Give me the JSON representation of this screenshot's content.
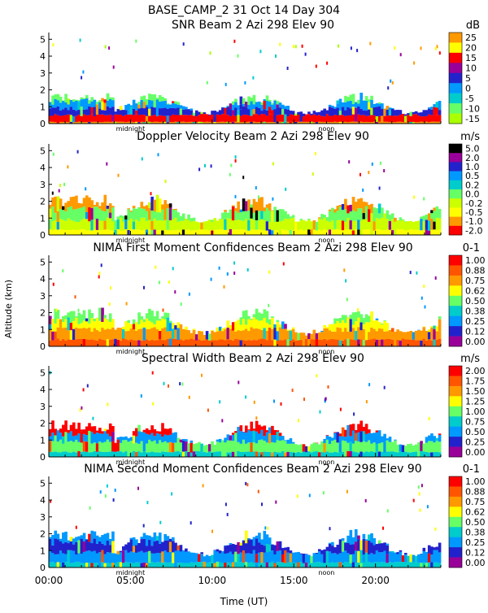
{
  "header": {
    "title": "BASE_CAMP_2  31 Oct 14 Day 304"
  },
  "x_axis": {
    "label": "Time (UT)",
    "range": [
      0,
      24
    ],
    "ticks": [
      {
        "v": 0,
        "label": "00:00"
      },
      {
        "v": 5,
        "label": "05:00"
      },
      {
        "v": 10,
        "label": "10:00"
      },
      {
        "v": 15,
        "label": "15:00"
      },
      {
        "v": 20,
        "label": "20:00"
      }
    ],
    "markers": [
      {
        "v": 5,
        "label": "midnight"
      },
      {
        "v": 17,
        "label": "noon"
      }
    ]
  },
  "y_axis": {
    "label": "Altitude (km)",
    "range": [
      0,
      5.4
    ],
    "ticks": [
      "0",
      "1",
      "2",
      "3",
      "4",
      "5"
    ]
  },
  "chart_data": [
    {
      "type": "heatmap",
      "title": "SNR Beam 2 Azi 298 Elev 90",
      "unit": "dB",
      "colorbar": [
        "25",
        "20",
        "15",
        "10",
        "5",
        "0",
        "-5",
        "-10",
        "-15"
      ],
      "palette": [
        "#ff9900",
        "#ffff00",
        "#ff0000",
        "#990099",
        "#2222cc",
        "#0099ff",
        "#00cccc",
        "#66ff66",
        "#aaff00"
      ],
      "profile": [
        {
          "alt": 0.1,
          "color": "#ff9900"
        },
        {
          "alt": 0.5,
          "color": "#ff0000"
        },
        {
          "alt": 0.9,
          "color": "#2222cc"
        },
        {
          "alt": 1.3,
          "color": "#0099ff"
        },
        {
          "alt": 1.6,
          "color": "#66ff66"
        }
      ]
    },
    {
      "type": "heatmap",
      "title": "Doppler Velocity Beam 2 Azi 298 Elev 90",
      "unit": "m/s",
      "colorbar": [
        "5.0",
        "2.0",
        "1.0",
        "0.5",
        "0.2",
        "0.0",
        "-0.2",
        "-0.5",
        "-1.0",
        "-2.0"
      ],
      "palette": [
        "#000000",
        "#990099",
        "#2222cc",
        "#0099ff",
        "#00cccc",
        "#66ff66",
        "#ccff00",
        "#ffff00",
        "#ff9900",
        "#ff0000"
      ],
      "profile": [
        {
          "alt": 0.3,
          "color": "#ffff00"
        },
        {
          "alt": 0.9,
          "color": "#ccff00"
        },
        {
          "alt": 1.5,
          "color": "#66ff66"
        },
        {
          "alt": 2.1,
          "color": "#ff9900"
        }
      ]
    },
    {
      "type": "heatmap",
      "title": "NIMA First Moment Confidences Beam 2 Azi 298 Elev 90",
      "unit": "0-1",
      "colorbar": [
        "1.00",
        "0.88",
        "0.75",
        "0.62",
        "0.50",
        "0.38",
        "0.25",
        "0.12",
        "0.00"
      ],
      "palette": [
        "#ff0000",
        "#ff5500",
        "#ff9900",
        "#ffff00",
        "#66ff66",
        "#00cccc",
        "#0099ff",
        "#2222cc",
        "#990099"
      ],
      "profile": [
        {
          "alt": 0.4,
          "color": "#ff5500"
        },
        {
          "alt": 1.0,
          "color": "#ff9900"
        },
        {
          "alt": 1.5,
          "color": "#ffff00"
        },
        {
          "alt": 2.0,
          "color": "#66ff66"
        }
      ]
    },
    {
      "type": "heatmap",
      "title": "Spectral Width Beam 2 Azi 298 Elev 90",
      "unit": "m/s",
      "colorbar": [
        "2.00",
        "1.75",
        "1.50",
        "1.25",
        "1.00",
        "0.75",
        "0.50",
        "0.25",
        "0.00"
      ],
      "palette": [
        "#ff0000",
        "#ff5500",
        "#ff9900",
        "#ffff00",
        "#66ff66",
        "#00cccc",
        "#0099ff",
        "#2222cc",
        "#990099"
      ],
      "profile": [
        {
          "alt": 0.3,
          "color": "#00cccc"
        },
        {
          "alt": 0.9,
          "color": "#66ff66"
        },
        {
          "alt": 1.4,
          "color": "#0099ff"
        },
        {
          "alt": 1.9,
          "color": "#ff0000"
        }
      ]
    },
    {
      "type": "heatmap",
      "title": "NIMA Second Moment Confidences Beam 2 Azi 298 Elev 90",
      "unit": "0-1",
      "colorbar": [
        "1.00",
        "0.88",
        "0.75",
        "0.62",
        "0.50",
        "0.38",
        "0.25",
        "0.12",
        "0.00"
      ],
      "palette": [
        "#ff0000",
        "#ff5500",
        "#ff9900",
        "#ffff00",
        "#66ff66",
        "#00cccc",
        "#0099ff",
        "#2222cc",
        "#990099"
      ],
      "profile": [
        {
          "alt": 0.3,
          "color": "#00cccc"
        },
        {
          "alt": 0.9,
          "color": "#0099ff"
        },
        {
          "alt": 1.5,
          "color": "#2222cc"
        },
        {
          "alt": 2.0,
          "color": "#0099ff"
        }
      ]
    }
  ]
}
